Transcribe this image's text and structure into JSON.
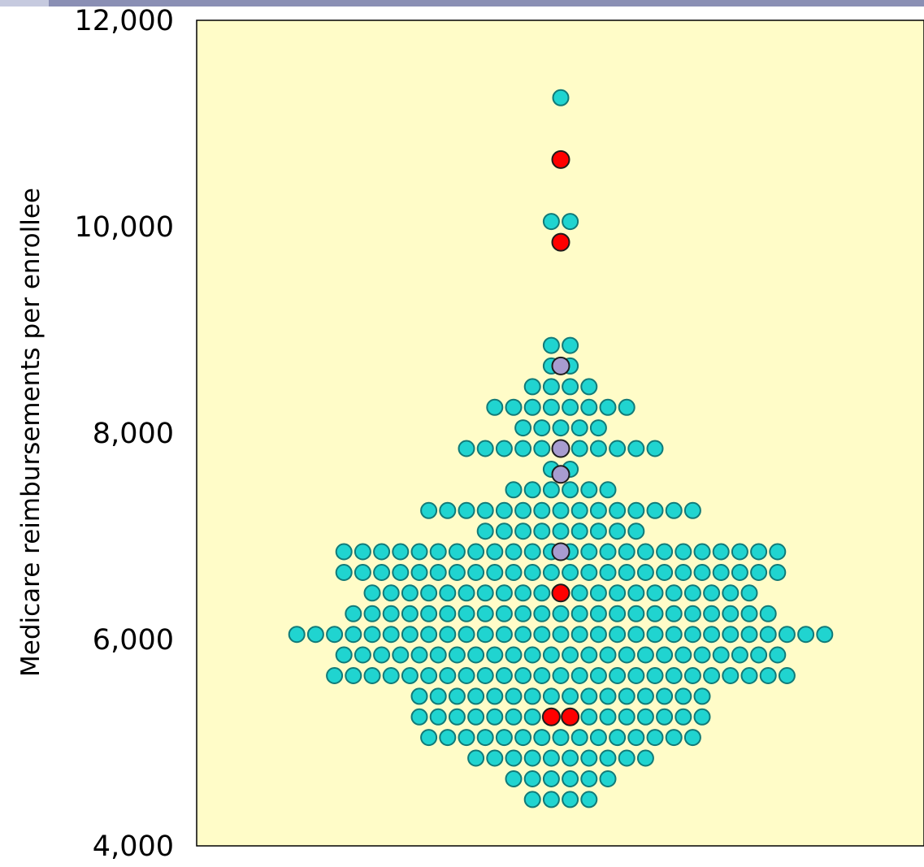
{
  "chart_data": {
    "type": "scatter",
    "title": "",
    "xlabel": "",
    "ylabel": "Medicare reimbursements per enrollee",
    "ylim": [
      4000,
      12000
    ],
    "yticks": [
      4000,
      6000,
      8000,
      10000,
      12000
    ],
    "ytick_labels": [
      "4,000",
      "6,000",
      "8,000",
      "10,000",
      "12,000"
    ],
    "grid": false,
    "legend": "none",
    "style": {
      "plot_background": "#fffcc8",
      "header_band": "#8a8fb4",
      "header_accent": "#c6cadf",
      "default_color": "#20d4d0",
      "default_edge": "#117a78",
      "highlight_edge": "#1c1c1c"
    },
    "rows": [
      {
        "y": 11250,
        "count": 1
      },
      {
        "y": 10650,
        "count": 1
      },
      {
        "y": 10050,
        "count": 2
      },
      {
        "y": 9850,
        "count": 1
      },
      {
        "y": 8850,
        "count": 2
      },
      {
        "y": 8650,
        "count": 2
      },
      {
        "y": 8450,
        "count": 4
      },
      {
        "y": 8250,
        "count": 8
      },
      {
        "y": 8050,
        "count": 5
      },
      {
        "y": 7850,
        "count": 11
      },
      {
        "y": 7650,
        "count": 2
      },
      {
        "y": 7600,
        "count": 1
      },
      {
        "y": 7450,
        "count": 6
      },
      {
        "y": 7250,
        "count": 15
      },
      {
        "y": 7050,
        "count": 9
      },
      {
        "y": 6850,
        "count": 24
      },
      {
        "y": 6650,
        "count": 24
      },
      {
        "y": 6450,
        "count": 21
      },
      {
        "y": 6250,
        "count": 23
      },
      {
        "y": 6050,
        "count": 29
      },
      {
        "y": 5850,
        "count": 24
      },
      {
        "y": 5650,
        "count": 25
      },
      {
        "y": 5450,
        "count": 16
      },
      {
        "y": 5250,
        "count": 16
      },
      {
        "y": 5050,
        "count": 15
      },
      {
        "y": 4850,
        "count": 10
      },
      {
        "y": 4650,
        "count": 6
      },
      {
        "y": 4450,
        "count": 4
      }
    ],
    "highlighted_points": [
      {
        "y": 10650,
        "color": "#ff0000"
      },
      {
        "y": 9850,
        "color": "#ff0000"
      },
      {
        "y": 8650,
        "color": "#a89cd0"
      },
      {
        "y": 7850,
        "color": "#a89cd0"
      },
      {
        "y": 7600,
        "color": "#a89cd0"
      },
      {
        "y": 6850,
        "color": "#a89cd0"
      },
      {
        "y": 6450,
        "color": "#ff0000"
      },
      {
        "y": 5250,
        "color": "#ff0000",
        "offset": -0.5
      },
      {
        "y": 5250,
        "color": "#ff0000",
        "offset": 0.5
      }
    ]
  }
}
